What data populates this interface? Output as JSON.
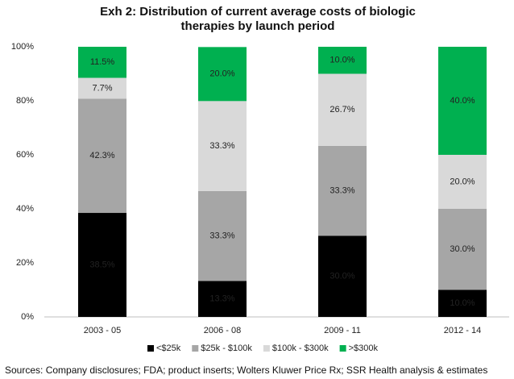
{
  "chart_data": {
    "type": "stacked_bar",
    "title": "Exh 2: Distribution of current average costs of biologic therapies by launch period",
    "source": "Sources: Company disclosures; FDA; product inserts; Wolters Kluwer Price Rx; SSR Health analysis & estimates",
    "categories": [
      "2003 - 05",
      "2006 - 08",
      "2009 - 11",
      "2012 - 14"
    ],
    "series": [
      {
        "name": "<$25k",
        "color": "#000000",
        "values": [
          38.5,
          13.3,
          30.0,
          10.0
        ],
        "value_labels": [
          "38.5%",
          "13.3%",
          "30.0%",
          "10.0%"
        ]
      },
      {
        "name": "$25k - $100k",
        "color": "#a6a6a6",
        "values": [
          42.3,
          33.3,
          33.3,
          30.0
        ],
        "value_labels": [
          "42.3%",
          "33.3%",
          "33.3%",
          "30.0%"
        ]
      },
      {
        "name": "$100k - $300k",
        "color": "#d9d9d9",
        "values": [
          7.7,
          33.3,
          26.7,
          20.0
        ],
        "value_labels": [
          "7.7%",
          "33.3%",
          "26.7%",
          "20.0%"
        ]
      },
      {
        "name": ">$300k",
        "color": "#00b050",
        "values": [
          11.5,
          20.0,
          10.0,
          40.0
        ],
        "value_labels": [
          "11.5%",
          "20.0%",
          "10.0%",
          "40.0%"
        ]
      }
    ],
    "ylim": [
      0,
      100
    ],
    "yticks": [
      {
        "value": 0,
        "label": "0%"
      },
      {
        "value": 20,
        "label": "20%"
      },
      {
        "value": 40,
        "label": "40%"
      },
      {
        "value": 60,
        "label": "60%"
      },
      {
        "value": 80,
        "label": "80%"
      },
      {
        "value": 100,
        "label": "100%"
      }
    ],
    "legend": "bottom"
  }
}
